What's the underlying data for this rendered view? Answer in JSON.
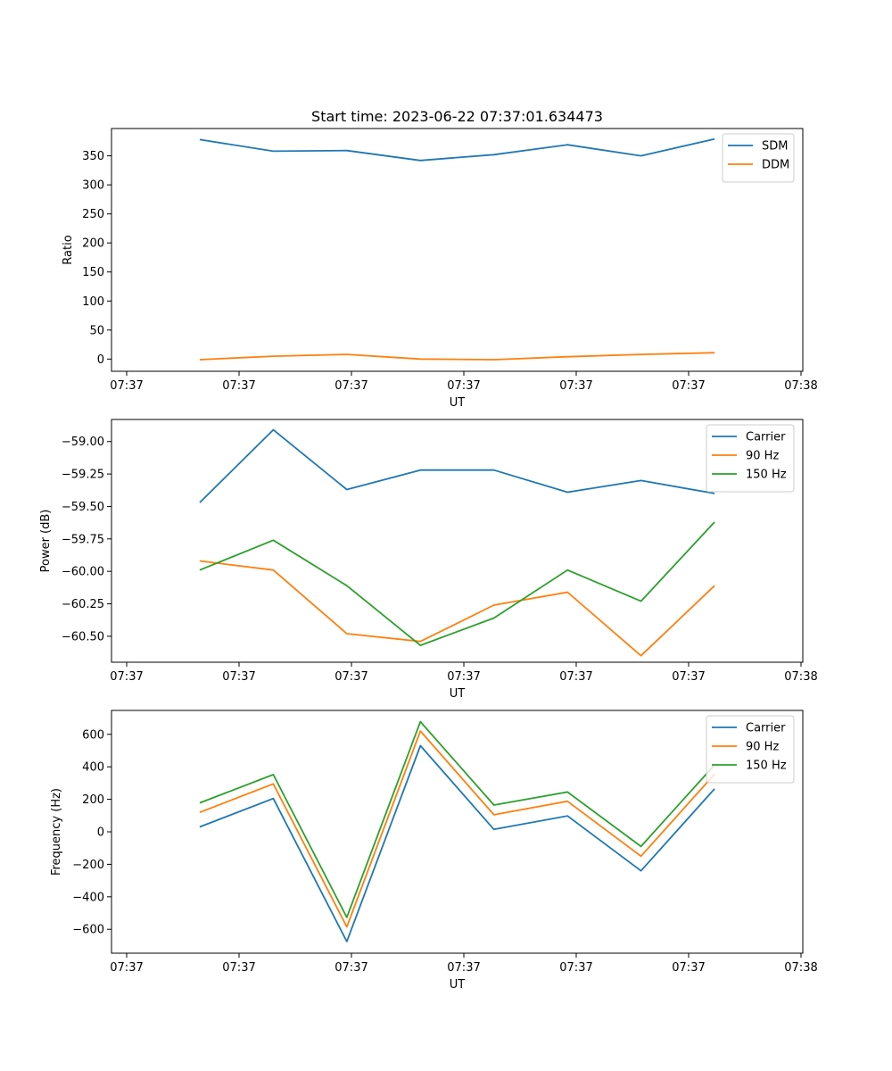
{
  "figure": {
    "title": "Start time: 2023-06-22 07:37:01.634473"
  },
  "colors": {
    "series1": "#1f77b4",
    "series2": "#ff7f0e",
    "series3": "#2ca02c"
  },
  "chart_data": [
    {
      "type": "line",
      "title": "Start time: 2023-06-22 07:37:01.634473",
      "xlabel": "UT",
      "ylabel": "Ratio",
      "x_tick_labels": [
        "07:37",
        "07:37",
        "07:37",
        "07:37",
        "07:37",
        "07:37",
        "07:38"
      ],
      "x": [
        1,
        2,
        3,
        4,
        5,
        6,
        7,
        8
      ],
      "xlim": [
        -0.2,
        9.2
      ],
      "ylim": [
        -21,
        397
      ],
      "yticks": [
        0,
        50,
        100,
        150,
        200,
        250,
        300,
        350
      ],
      "grid": false,
      "legend_position": "upper right",
      "series": [
        {
          "name": "SDM",
          "color": "#1f77b4",
          "values": [
            378,
            358,
            359,
            342,
            352,
            369,
            350,
            379
          ]
        },
        {
          "name": "DDM",
          "color": "#ff7f0e",
          "values": [
            -1,
            5,
            8,
            0,
            -1,
            4,
            8,
            11
          ]
        }
      ]
    },
    {
      "type": "line",
      "xlabel": "UT",
      "ylabel": "Power (dB)",
      "x_tick_labels": [
        "07:37",
        "07:37",
        "07:37",
        "07:37",
        "07:37",
        "07:37",
        "07:38"
      ],
      "x": [
        1,
        2,
        3,
        4,
        5,
        6,
        7,
        8
      ],
      "xlim": [
        -0.2,
        9.2
      ],
      "ylim": [
        -60.7,
        -58.83
      ],
      "yticks": [
        -60.5,
        -60.25,
        -60.0,
        -59.75,
        -59.5,
        -59.25,
        -59.0
      ],
      "y_tick_labels": [
        "−60.50",
        "−60.25",
        "−60.00",
        "−59.75",
        "−59.50",
        "−59.25",
        "−59.00"
      ],
      "grid": false,
      "legend_position": "upper right",
      "series": [
        {
          "name": "Carrier",
          "color": "#1f77b4",
          "values": [
            -59.47,
            -58.91,
            -59.37,
            -59.22,
            -59.22,
            -59.39,
            -59.3,
            -59.4
          ]
        },
        {
          "name": "90 Hz",
          "color": "#ff7f0e",
          "values": [
            -59.92,
            -59.99,
            -60.48,
            -60.54,
            -60.26,
            -60.16,
            -60.65,
            -60.11
          ]
        },
        {
          "name": "150 Hz",
          "color": "#2ca02c",
          "values": [
            -59.99,
            -59.76,
            -60.11,
            -60.57,
            -60.36,
            -59.99,
            -60.23,
            -59.62
          ]
        }
      ]
    },
    {
      "type": "line",
      "xlabel": "UT",
      "ylabel": "Frequency (Hz)",
      "x_tick_labels": [
        "07:37",
        "07:37",
        "07:37",
        "07:37",
        "07:37",
        "07:37",
        "07:38"
      ],
      "x": [
        1,
        2,
        3,
        4,
        5,
        6,
        7,
        8
      ],
      "xlim": [
        -0.2,
        9.2
      ],
      "ylim": [
        -747,
        747
      ],
      "yticks": [
        -600,
        -400,
        -200,
        0,
        200,
        400,
        600
      ],
      "y_tick_labels": [
        "−600",
        "−400",
        "−200",
        "0",
        "200",
        "400",
        "600"
      ],
      "grid": false,
      "legend_position": "upper right",
      "series": [
        {
          "name": "Carrier",
          "color": "#1f77b4",
          "values": [
            30,
            205,
            -675,
            530,
            15,
            98,
            -240,
            265
          ]
        },
        {
          "name": "90 Hz",
          "color": "#ff7f0e",
          "values": [
            120,
            295,
            -585,
            620,
            105,
            188,
            -150,
            355
          ]
        },
        {
          "name": "150 Hz",
          "color": "#2ca02c",
          "values": [
            178,
            352,
            -527,
            678,
            165,
            245,
            -90,
            412
          ]
        }
      ]
    }
  ]
}
